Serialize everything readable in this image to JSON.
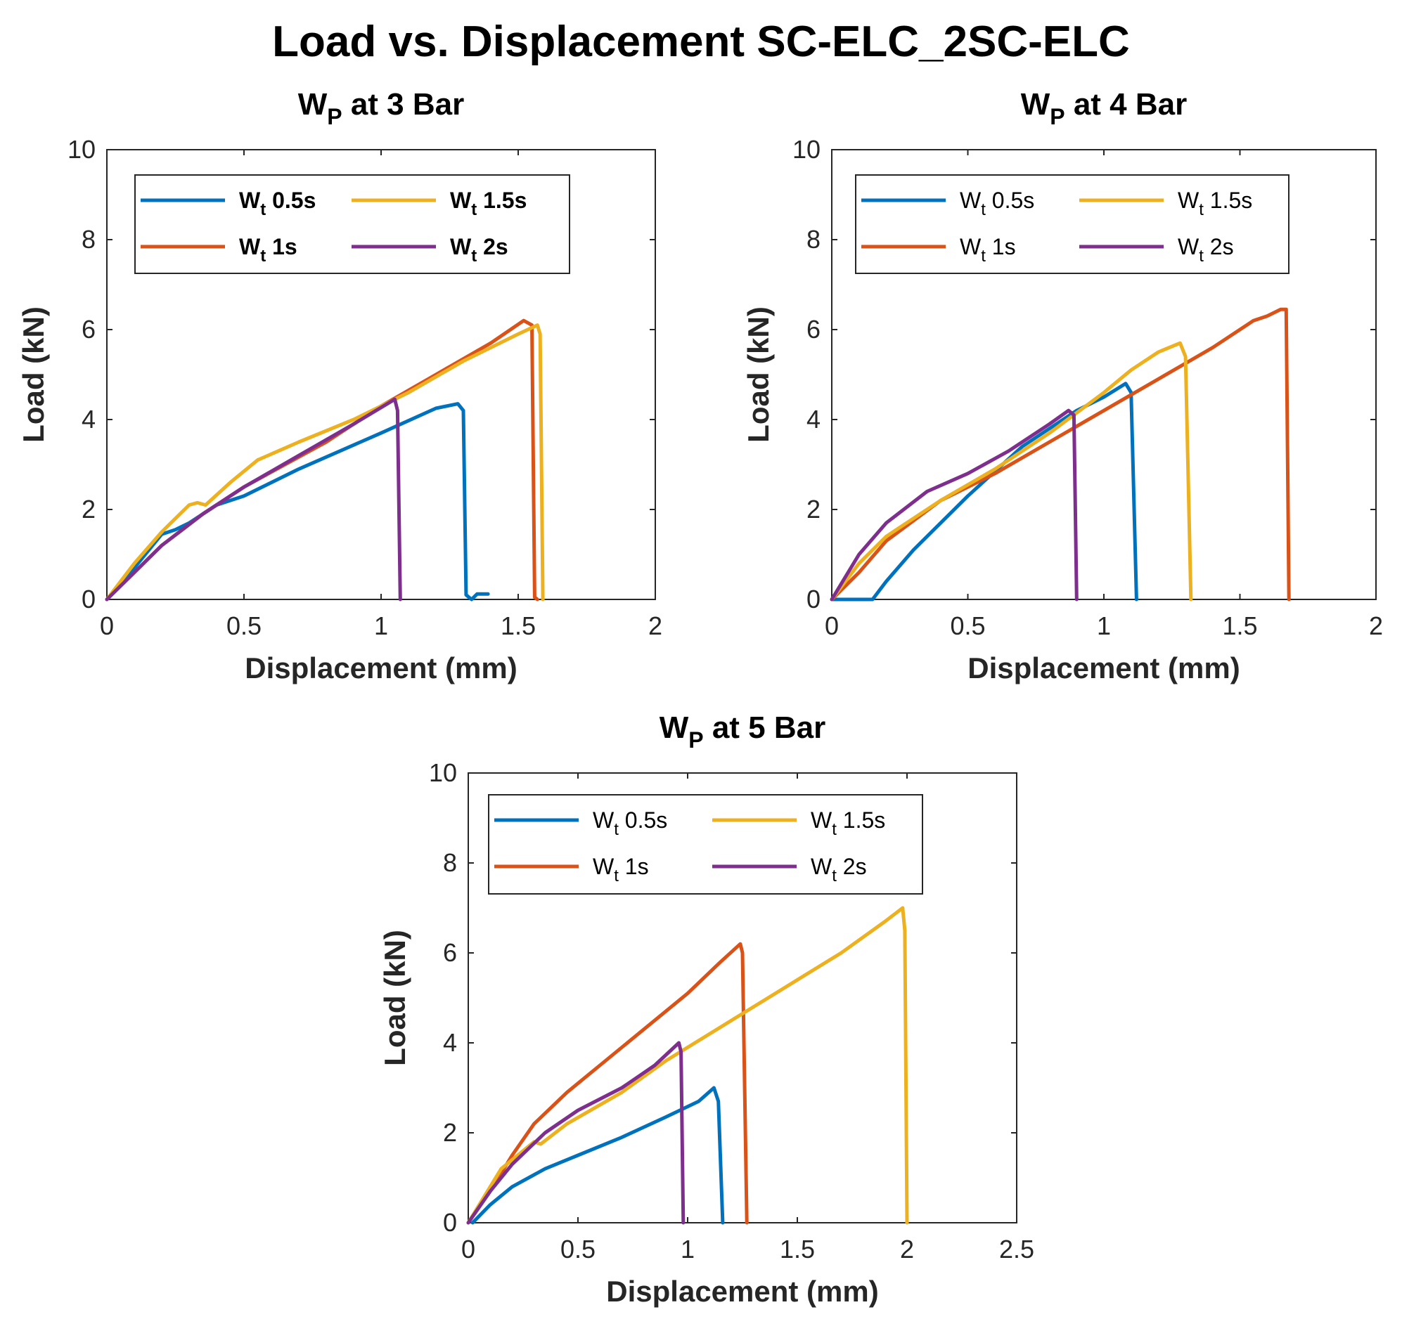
{
  "colors": {
    "Wt 0.5s": "#0072BD",
    "Wt 1s": "#D95319",
    "Wt 1.5s": "#EDB120",
    "Wt 2s": "#7E2F8E"
  },
  "chart_data": {
    "suptitle": "Load vs. Displacement SC-ELC_2SC-ELC",
    "panels": [
      {
        "type": "line",
        "title": "W",
        "title_sub": "P",
        "title_rest": " at 3 Bar",
        "xlabel": "Displacement (mm)",
        "ylabel": "Load (kN)",
        "xlim": [
          0,
          2
        ],
        "ylim": [
          0,
          10
        ],
        "xticks": [
          "0",
          "0.5",
          "1",
          "1.5",
          "2"
        ],
        "yticks": [
          "0",
          "2",
          "4",
          "6",
          "8",
          "10"
        ],
        "legend_bold": true,
        "legend": [
          "W_t 0.5s",
          "W_t 1.5s",
          "W_t 1s",
          "W_t 2s"
        ],
        "series": [
          {
            "name": "W_t 0.5s",
            "key": "Wt 0.5s",
            "points": [
              [
                0,
                0
              ],
              [
                0.1,
                0.7
              ],
              [
                0.2,
                1.45
              ],
              [
                0.25,
                1.55
              ],
              [
                0.3,
                1.7
              ],
              [
                0.4,
                2.1
              ],
              [
                0.5,
                2.3
              ],
              [
                0.7,
                2.9
              ],
              [
                1.0,
                3.7
              ],
              [
                1.2,
                4.25
              ],
              [
                1.28,
                4.35
              ],
              [
                1.3,
                4.2
              ],
              [
                1.31,
                0.1
              ],
              [
                1.33,
                0
              ],
              [
                1.35,
                0.12
              ],
              [
                1.39,
                0.12
              ]
            ]
          },
          {
            "name": "W_t 1s",
            "key": "Wt 1s",
            "points": [
              [
                0,
                0
              ],
              [
                0.1,
                0.6
              ],
              [
                0.2,
                1.2
              ],
              [
                0.35,
                1.9
              ],
              [
                0.5,
                2.5
              ],
              [
                0.8,
                3.5
              ],
              [
                1.0,
                4.3
              ],
              [
                1.2,
                5.0
              ],
              [
                1.4,
                5.7
              ],
              [
                1.52,
                6.2
              ],
              [
                1.55,
                6.1
              ],
              [
                1.56,
                0.05
              ],
              [
                1.57,
                0
              ]
            ]
          },
          {
            "name": "W_t 1.5s",
            "key": "Wt 1.5s",
            "points": [
              [
                0,
                0
              ],
              [
                0.1,
                0.8
              ],
              [
                0.2,
                1.5
              ],
              [
                0.3,
                2.1
              ],
              [
                0.33,
                2.15
              ],
              [
                0.36,
                2.1
              ],
              [
                0.45,
                2.6
              ],
              [
                0.55,
                3.1
              ],
              [
                0.7,
                3.5
              ],
              [
                0.9,
                4.0
              ],
              [
                1.1,
                4.6
              ],
              [
                1.3,
                5.3
              ],
              [
                1.5,
                5.9
              ],
              [
                1.57,
                6.1
              ],
              [
                1.58,
                5.9
              ],
              [
                1.59,
                0
              ]
            ]
          },
          {
            "name": "W_t 2s",
            "key": "Wt 2s",
            "points": [
              [
                0,
                0
              ],
              [
                0.1,
                0.6
              ],
              [
                0.2,
                1.2
              ],
              [
                0.35,
                1.9
              ],
              [
                0.5,
                2.5
              ],
              [
                0.7,
                3.2
              ],
              [
                0.9,
                3.9
              ],
              [
                1.05,
                4.45
              ],
              [
                1.06,
                4.2
              ],
              [
                1.07,
                0
              ]
            ]
          }
        ]
      },
      {
        "type": "line",
        "title": "W",
        "title_sub": "P",
        "title_rest": " at 4 Bar",
        "xlabel": "Displacement (mm)",
        "ylabel": "Load (kN)",
        "xlim": [
          0,
          2
        ],
        "ylim": [
          0,
          10
        ],
        "xticks": [
          "0",
          "0.5",
          "1",
          "1.5",
          "2"
        ],
        "yticks": [
          "0",
          "2",
          "4",
          "6",
          "8",
          "10"
        ],
        "legend_bold": false,
        "legend": [
          "W_t 0.5s",
          "W_t 1.5s",
          "W_t 1s",
          "W_t 2s"
        ],
        "series": [
          {
            "name": "W_t 0.5s",
            "key": "Wt 0.5s",
            "points": [
              [
                0,
                0
              ],
              [
                0.15,
                0
              ],
              [
                0.2,
                0.4
              ],
              [
                0.3,
                1.1
              ],
              [
                0.5,
                2.3
              ],
              [
                0.7,
                3.4
              ],
              [
                0.9,
                4.2
              ],
              [
                1.0,
                4.5
              ],
              [
                1.08,
                4.8
              ],
              [
                1.1,
                4.6
              ],
              [
                1.12,
                0
              ]
            ]
          },
          {
            "name": "W_t 1s",
            "key": "Wt 1s",
            "points": [
              [
                0,
                0
              ],
              [
                0.1,
                0.6
              ],
              [
                0.2,
                1.3
              ],
              [
                0.4,
                2.2
              ],
              [
                0.6,
                2.8
              ],
              [
                0.8,
                3.5
              ],
              [
                1.0,
                4.2
              ],
              [
                1.2,
                4.9
              ],
              [
                1.4,
                5.6
              ],
              [
                1.55,
                6.2
              ],
              [
                1.6,
                6.3
              ],
              [
                1.65,
                6.45
              ],
              [
                1.67,
                6.45
              ],
              [
                1.68,
                0
              ]
            ]
          },
          {
            "name": "W_t 1.5s",
            "key": "Wt 1.5s",
            "points": [
              [
                0,
                0
              ],
              [
                0.1,
                0.8
              ],
              [
                0.2,
                1.4
              ],
              [
                0.4,
                2.2
              ],
              [
                0.6,
                2.9
              ],
              [
                0.8,
                3.7
              ],
              [
                1.0,
                4.6
              ],
              [
                1.1,
                5.1
              ],
              [
                1.2,
                5.5
              ],
              [
                1.28,
                5.7
              ],
              [
                1.3,
                5.4
              ],
              [
                1.32,
                0
              ]
            ]
          },
          {
            "name": "W_t 2s",
            "key": "Wt 2s",
            "points": [
              [
                0,
                0
              ],
              [
                0.1,
                1.0
              ],
              [
                0.2,
                1.7
              ],
              [
                0.35,
                2.4
              ],
              [
                0.5,
                2.8
              ],
              [
                0.65,
                3.3
              ],
              [
                0.8,
                3.9
              ],
              [
                0.87,
                4.2
              ],
              [
                0.89,
                4.1
              ],
              [
                0.9,
                0
              ]
            ]
          }
        ]
      },
      {
        "type": "line",
        "title": "W",
        "title_sub": "P",
        "title_rest": " at 5 Bar",
        "xlabel": "Displacement (mm)",
        "ylabel": "Load (kN)",
        "xlim": [
          0,
          2.5
        ],
        "ylim": [
          0,
          10
        ],
        "xticks": [
          "0",
          "0.5",
          "1",
          "1.5",
          "2",
          "2.5"
        ],
        "yticks": [
          "0",
          "2",
          "4",
          "6",
          "8",
          "10"
        ],
        "legend_bold": false,
        "legend": [
          "W_t 0.5s",
          "W_t 1.5s",
          "W_t 1s",
          "W_t 2s"
        ],
        "series": [
          {
            "name": "W_t 0.5s",
            "key": "Wt 0.5s",
            "points": [
              [
                0.02,
                0
              ],
              [
                0.1,
                0.4
              ],
              [
                0.2,
                0.8
              ],
              [
                0.35,
                1.2
              ],
              [
                0.5,
                1.5
              ],
              [
                0.7,
                1.9
              ],
              [
                0.9,
                2.35
              ],
              [
                1.05,
                2.7
              ],
              [
                1.12,
                3.0
              ],
              [
                1.14,
                2.7
              ],
              [
                1.16,
                0
              ]
            ]
          },
          {
            "name": "W_t 1s",
            "key": "Wt 1s",
            "points": [
              [
                0,
                0
              ],
              [
                0.1,
                0.7
              ],
              [
                0.2,
                1.5
              ],
              [
                0.3,
                2.2
              ],
              [
                0.45,
                2.9
              ],
              [
                0.6,
                3.5
              ],
              [
                0.8,
                4.3
              ],
              [
                1.0,
                5.1
              ],
              [
                1.15,
                5.8
              ],
              [
                1.24,
                6.2
              ],
              [
                1.25,
                6.0
              ],
              [
                1.27,
                0
              ]
            ]
          },
          {
            "name": "W_t 1.5s",
            "key": "Wt 1.5s",
            "points": [
              [
                0,
                0
              ],
              [
                0.15,
                1.2
              ],
              [
                0.3,
                1.8
              ],
              [
                0.33,
                1.75
              ],
              [
                0.45,
                2.2
              ],
              [
                0.7,
                2.9
              ],
              [
                0.9,
                3.6
              ],
              [
                1.2,
                4.5
              ],
              [
                1.4,
                5.1
              ],
              [
                1.7,
                6.0
              ],
              [
                1.9,
                6.7
              ],
              [
                1.98,
                7.0
              ],
              [
                1.99,
                6.5
              ],
              [
                2.0,
                0
              ]
            ]
          },
          {
            "name": "W_t 2s",
            "key": "Wt 2s",
            "points": [
              [
                0,
                0
              ],
              [
                0.1,
                0.7
              ],
              [
                0.2,
                1.3
              ],
              [
                0.35,
                2.0
              ],
              [
                0.5,
                2.5
              ],
              [
                0.7,
                3.0
              ],
              [
                0.85,
                3.5
              ],
              [
                0.96,
                4.0
              ],
              [
                0.97,
                3.8
              ],
              [
                0.98,
                0
              ]
            ]
          }
        ]
      }
    ]
  }
}
